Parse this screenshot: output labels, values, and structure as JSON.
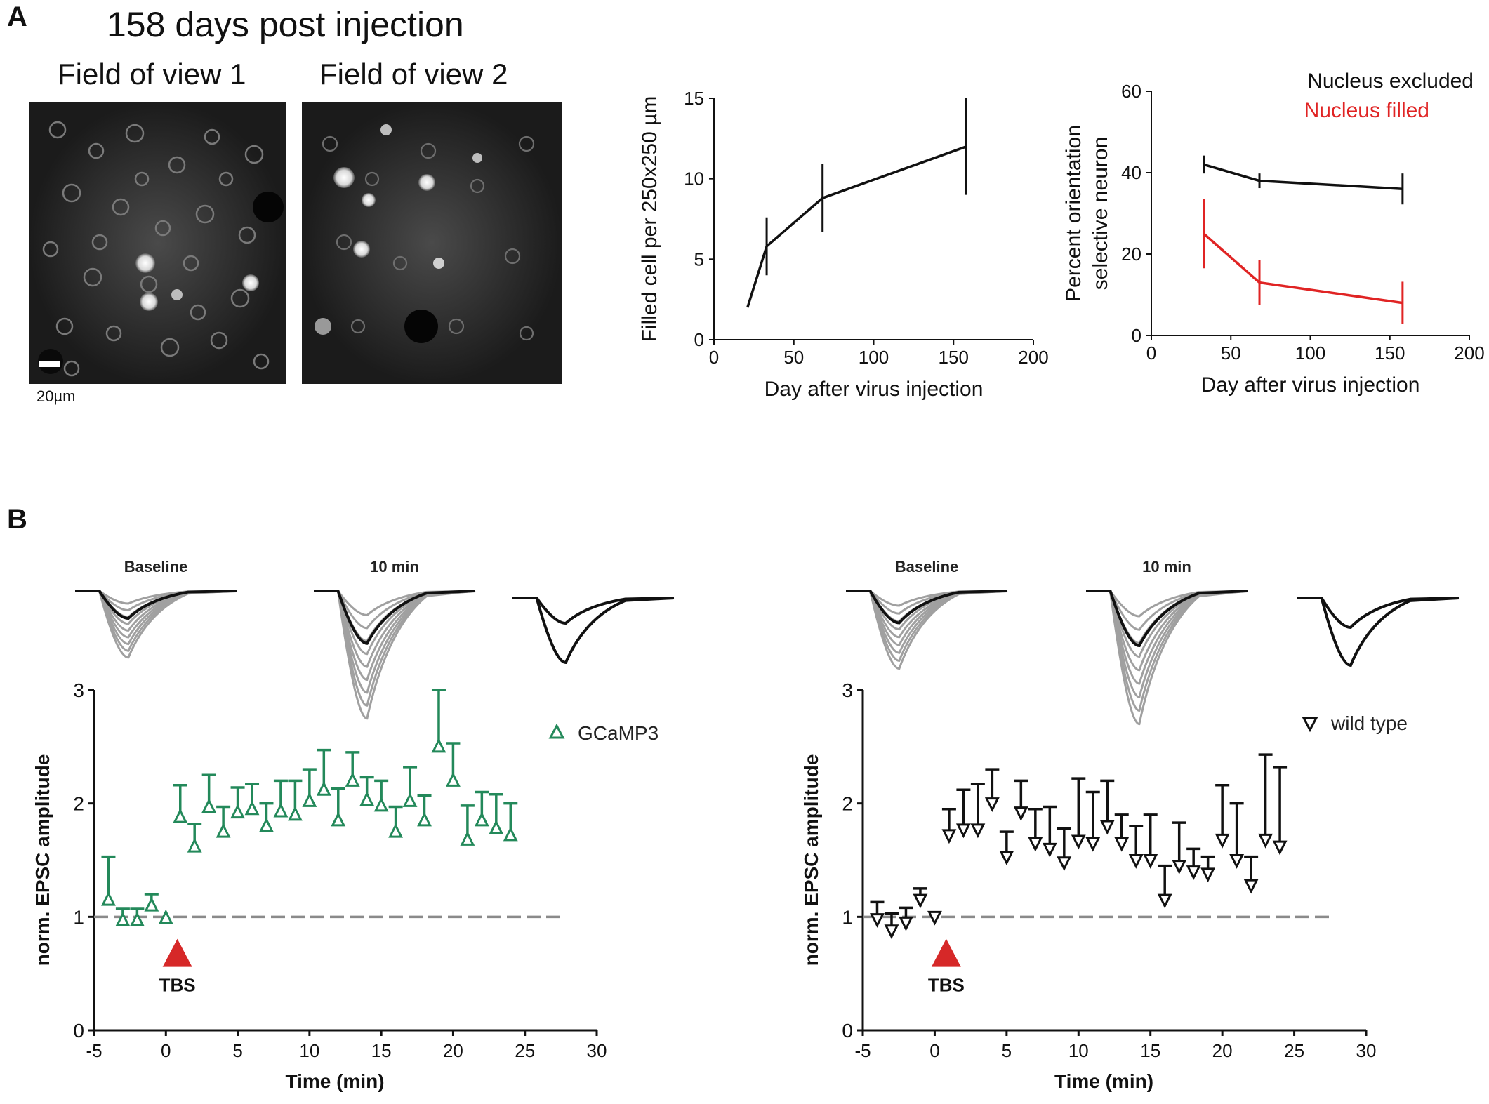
{
  "panelA": {
    "label": "A",
    "title": "158 days post injection",
    "fov1_label": "Field of view 1",
    "fov2_label": "Field of view 2",
    "scalebar_label": "20µm"
  },
  "panelB": {
    "label": "B"
  },
  "colors": {
    "green": "#23895a",
    "red": "#e02424",
    "black": "#111111",
    "grey": "#9a9a9a",
    "tbs": "#d62828"
  },
  "chart_data": [
    {
      "id": "filled",
      "type": "line",
      "xlabel": "Day after virus injection",
      "ylabel": "Filled cell per 250x250 µm",
      "xlim": [
        0,
        200
      ],
      "ylim": [
        0,
        15
      ],
      "xticks": [
        "0",
        "50",
        "100",
        "150",
        "200"
      ],
      "yticks": [
        "0",
        "5",
        "10",
        "15"
      ],
      "series": [
        {
          "name": "filled",
          "color": "#111111",
          "x": [
            21,
            33,
            68,
            158
          ],
          "y": [
            2,
            5.8,
            8.8,
            12
          ],
          "err": [
            0,
            1.8,
            2.1,
            3.0
          ]
        }
      ]
    },
    {
      "id": "orientation",
      "type": "line",
      "xlabel": "Day after virus injection",
      "ylabel": [
        "Percent orientation",
        "selective neuron"
      ],
      "xlim": [
        0,
        200
      ],
      "ylim": [
        0,
        60
      ],
      "xticks": [
        "0",
        "50",
        "100",
        "150",
        "200"
      ],
      "yticks": [
        "0",
        "20",
        "40",
        "60"
      ],
      "legend": [
        "Nucleus excluded",
        "Nucleus filled"
      ],
      "series": [
        {
          "name": "Nucleus excluded",
          "color": "#111111",
          "x": [
            33,
            68,
            158
          ],
          "y": [
            42,
            38,
            36
          ],
          "err": [
            2.2,
            1.8,
            3.8
          ]
        },
        {
          "name": "Nucleus filled",
          "color": "#e02424",
          "x": [
            33,
            68,
            158
          ],
          "y": [
            25,
            13,
            8
          ],
          "err": [
            8.5,
            5.5,
            5.2
          ]
        }
      ]
    },
    {
      "id": "gcamp",
      "type": "scatter",
      "xlabel": "Time (min)",
      "ylabel": "norm. EPSC amplitude",
      "xlim": [
        -5,
        30
      ],
      "ylim": [
        0,
        3
      ],
      "xticks": [
        "-5",
        "0",
        "5",
        "10",
        "15",
        "20",
        "25",
        "30"
      ],
      "yticks": [
        "0",
        "1",
        "2",
        "3"
      ],
      "legend": "GCaMP3",
      "marker": "triangle-up",
      "annotation": "TBS",
      "baseline": 1,
      "trace_labels": [
        "Baseline",
        "10 min"
      ],
      "series": [
        {
          "name": "GCaMP3",
          "color": "#23895a",
          "x": [
            -4,
            -3,
            -2,
            -1,
            0,
            1,
            2,
            3,
            4,
            5,
            6,
            7,
            8,
            9,
            10,
            11,
            12,
            13,
            14,
            15,
            16,
            17,
            18,
            19,
            20,
            21,
            22,
            23,
            24
          ],
          "y": [
            1.15,
            0.97,
            0.97,
            1.1,
            0.99,
            1.88,
            1.62,
            1.97,
            1.75,
            1.92,
            1.95,
            1.8,
            1.93,
            1.9,
            2.02,
            2.12,
            1.85,
            2.2,
            2.03,
            1.98,
            1.75,
            2.02,
            1.85,
            2.5,
            2.2,
            1.68,
            1.85,
            1.78,
            1.72
          ],
          "err": [
            0.38,
            0.1,
            0.1,
            0.1,
            0,
            0.28,
            0.2,
            0.28,
            0.22,
            0.22,
            0.22,
            0.2,
            0.27,
            0.3,
            0.28,
            0.35,
            0.28,
            0.25,
            0.2,
            0.22,
            0.22,
            0.3,
            0.22,
            0.5,
            0.33,
            0.3,
            0.25,
            0.3,
            0.28
          ]
        }
      ]
    },
    {
      "id": "wildtype",
      "type": "scatter",
      "xlabel": "Time (min)",
      "ylabel": "norm. EPSC amplitude",
      "xlim": [
        -5,
        30
      ],
      "ylim": [
        0,
        3
      ],
      "xticks": [
        "-5",
        "0",
        "5",
        "10",
        "15",
        "20",
        "25",
        "30"
      ],
      "yticks": [
        "0",
        "1",
        "2",
        "3"
      ],
      "legend": "wild type",
      "marker": "triangle-down",
      "annotation": "TBS",
      "baseline": 1,
      "trace_labels": [
        "Baseline",
        "10 min"
      ],
      "series": [
        {
          "name": "wild type",
          "color": "#111111",
          "x": [
            -4,
            -3,
            -2,
            -1,
            0,
            1,
            2,
            3,
            4,
            5,
            6,
            7,
            8,
            9,
            10,
            11,
            12,
            13,
            14,
            15,
            16,
            17,
            18,
            19,
            20,
            21,
            22,
            23,
            24
          ],
          "y": [
            0.98,
            0.88,
            0.95,
            1.15,
            1.0,
            1.72,
            1.77,
            1.77,
            2.0,
            1.53,
            1.92,
            1.65,
            1.6,
            1.48,
            1.67,
            1.65,
            1.8,
            1.65,
            1.5,
            1.5,
            1.15,
            1.45,
            1.4,
            1.38,
            1.68,
            1.5,
            1.28,
            1.68,
            1.62
          ],
          "err": [
            0.15,
            0.15,
            0.13,
            0.1,
            0,
            0.23,
            0.35,
            0.4,
            0.3,
            0.22,
            0.28,
            0.3,
            0.37,
            0.3,
            0.55,
            0.45,
            0.4,
            0.25,
            0.3,
            0.4,
            0.3,
            0.38,
            0.2,
            0.15,
            0.48,
            0.5,
            0.25,
            0.75,
            0.7
          ]
        }
      ]
    }
  ]
}
